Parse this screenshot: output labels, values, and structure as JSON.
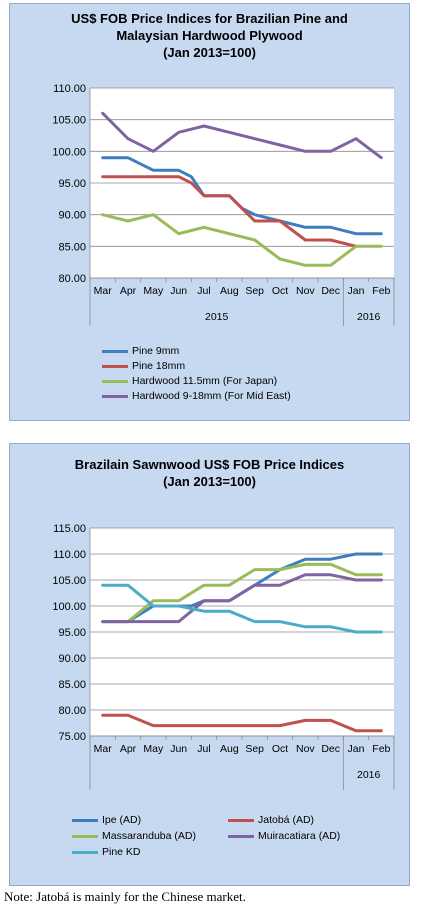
{
  "chart_data": [
    {
      "type": "line",
      "title_lines": [
        "US$ FOB Price Indices for Brazilian Pine and",
        "Malaysian Hardwood Plywood",
        "(Jan 2013=100)"
      ],
      "categories": [
        "Mar",
        "Apr",
        "May",
        "Jun",
        "Jul",
        "Aug",
        "Sep",
        "Oct",
        "Nov",
        "Dec",
        "Jan",
        "Feb"
      ],
      "year_labels": [
        {
          "label": "2015",
          "from": 0,
          "to": 9
        },
        {
          "label": "2016",
          "from": 10,
          "to": 11
        }
      ],
      "ylim": [
        80,
        110
      ],
      "yticks": [
        "80.00",
        "85.00",
        "90.00",
        "95.00",
        "100.00",
        "105.00",
        "110.00"
      ],
      "grid": true,
      "series": [
        {
          "name": "Pine 9mm",
          "color": "#3d7ebf",
          "x": [
            0,
            1,
            2,
            3,
            3.5,
            4,
            5,
            5.5,
            6,
            7,
            8,
            9,
            10,
            11
          ],
          "values": [
            99,
            99,
            97,
            97,
            96,
            93,
            93,
            91,
            90,
            89,
            88,
            88,
            87,
            87
          ]
        },
        {
          "name": "Pine 18mm",
          "color": "#c0504d",
          "x": [
            0,
            1,
            2,
            3,
            3.5,
            4,
            5,
            5.5,
            6,
            7,
            8,
            8.5,
            9,
            10
          ],
          "values": [
            96,
            96,
            96,
            96,
            95,
            93,
            93,
            91,
            89,
            89,
            86,
            86,
            86,
            85
          ]
        },
        {
          "name": "Hardwood 11.5mm (For Japan)",
          "color": "#9bbb59",
          "x": [
            0,
            1,
            2,
            3,
            3.5,
            4,
            5,
            6,
            7,
            8,
            8.5,
            9,
            10,
            11
          ],
          "values": [
            90,
            89,
            90,
            87,
            87.5,
            88,
            87,
            86,
            83,
            82,
            82,
            82,
            85,
            85
          ]
        },
        {
          "name": "Hardwood 9-18mm (For Mid East)",
          "color": "#8064a2",
          "x": [
            0,
            1,
            2,
            2.5,
            3,
            3.5,
            4,
            5,
            6,
            7,
            8,
            9,
            10,
            11
          ],
          "values": [
            106,
            102,
            100,
            101.5,
            103,
            103.5,
            104,
            103,
            102,
            101,
            100,
            100,
            102,
            99
          ]
        }
      ]
    },
    {
      "type": "line",
      "title_lines": [
        "Brazilain Sawnwood US$ FOB Price Indices",
        "(Jan 2013=100)"
      ],
      "categories": [
        "Mar",
        "Apr",
        "May",
        "Jun",
        "Jul",
        "Aug",
        "Sep",
        "Oct",
        "Nov",
        "Dec",
        "Jan",
        "Feb"
      ],
      "year_labels": [
        {
          "label": "2016",
          "from": 10,
          "to": 11
        }
      ],
      "ylim": [
        75,
        115
      ],
      "yticks": [
        "75.00",
        "80.00",
        "85.00",
        "90.00",
        "95.00",
        "100.00",
        "105.00",
        "110.00",
        "115.00"
      ],
      "grid": true,
      "series": [
        {
          "name": "Ipe (AD)",
          "color": "#3d7ebf",
          "x": [
            0,
            1,
            2,
            3,
            3.5,
            4,
            5,
            6,
            7,
            8,
            9,
            10,
            11
          ],
          "values": [
            97,
            97,
            100,
            100,
            100,
            101,
            101,
            104,
            107,
            109,
            109,
            110,
            110
          ]
        },
        {
          "name": "Jatobá (AD)",
          "color": "#c0504d",
          "x": [
            0,
            1,
            2,
            3,
            4,
            5,
            6,
            7,
            8,
            9,
            10,
            11
          ],
          "values": [
            79,
            79,
            77,
            77,
            77,
            77,
            77,
            77,
            78,
            78,
            76,
            76
          ]
        },
        {
          "name": "Massaranduba (AD)",
          "color": "#9bbb59",
          "x": [
            0,
            1,
            2,
            3,
            4,
            5,
            6,
            7,
            8,
            9,
            10,
            11
          ],
          "values": [
            97,
            97,
            101,
            101,
            104,
            104,
            107,
            107,
            108,
            108,
            106,
            106
          ]
        },
        {
          "name": "Muiracatiara (AD)",
          "color": "#8064a2",
          "x": [
            0,
            1,
            2,
            3,
            4,
            5,
            6,
            7,
            8,
            9,
            10,
            11
          ],
          "values": [
            97,
            97,
            97,
            97,
            101,
            101,
            104,
            104,
            106,
            106,
            105,
            105
          ]
        },
        {
          "name": "Pine KD",
          "color": "#4bacc6",
          "x": [
            0,
            1,
            2,
            3,
            4,
            5,
            6,
            7,
            8,
            9,
            10,
            11
          ],
          "values": [
            104,
            104,
            100,
            100,
            99,
            99,
            97,
            97,
            96,
            96,
            95,
            95
          ]
        }
      ]
    }
  ],
  "note": "Note: Jatobá is mainly for the Chinese market."
}
